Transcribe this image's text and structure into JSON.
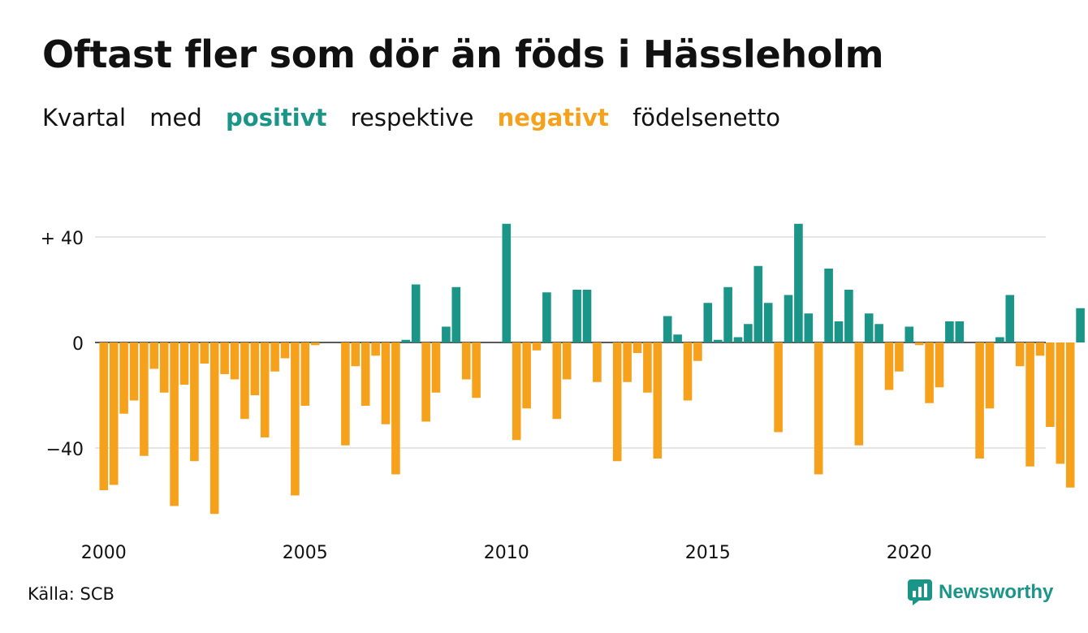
{
  "header": {
    "title": "Oftast fler som dör än föds i Hässleholm",
    "subtitle": {
      "part1": "Kvartal",
      "part2": "med",
      "positive": "positivt",
      "part3": "respektive",
      "negative": "negativt",
      "part4": "födelsenetto"
    }
  },
  "footer": {
    "source": "Källa: SCB",
    "brand": "Newsworthy"
  },
  "colors": {
    "positive": "#1a9587",
    "negative": "#f5a11c",
    "grid": "#dddddd",
    "brand": "#1a9587"
  },
  "chart_data": {
    "type": "bar",
    "title": "Oftast fler som dör än föds i Hässleholm",
    "xlabel": "",
    "ylabel": "",
    "y_ticks": [
      {
        "value": 40,
        "label": "+ 40"
      },
      {
        "value": 0,
        "label": "0"
      },
      {
        "value": -40,
        "label": "−40"
      }
    ],
    "x_ticks": [
      {
        "year": 2000,
        "label": "2000"
      },
      {
        "year": 2005,
        "label": "2005"
      },
      {
        "year": 2010,
        "label": "2010"
      },
      {
        "year": 2015,
        "label": "2015"
      },
      {
        "year": 2020,
        "label": "2020"
      }
    ],
    "ylim": [
      -68,
      46
    ],
    "grid": true,
    "start_year": 2000,
    "quarters_per_year": 4,
    "values": [
      -56,
      -54,
      -27,
      -22,
      -43,
      -10,
      -19,
      -62,
      -16,
      -45,
      -8,
      -65,
      -12,
      -14,
      -29,
      -20,
      -36,
      -11,
      -6,
      -58,
      -24,
      -1,
      0,
      0,
      -39,
      -9,
      -24,
      -5,
      -31,
      -50,
      1,
      22,
      -30,
      -19,
      6,
      21,
      -14,
      -21,
      0,
      0,
      45,
      -37,
      -25,
      -3,
      19,
      -29,
      -14,
      20,
      20,
      -15,
      0,
      -45,
      -15,
      -4,
      -19,
      -44,
      10,
      3,
      -22,
      -7,
      15,
      1,
      21,
      2,
      7,
      29,
      15,
      -34,
      18,
      45,
      11,
      -50,
      28,
      8,
      20,
      -39,
      11,
      7,
      -18,
      -11,
      6,
      -1,
      -23,
      -17,
      8,
      8,
      0,
      -44,
      -25,
      2,
      18,
      -9,
      -47,
      -5,
      -32,
      -46,
      -55,
      13
    ]
  }
}
